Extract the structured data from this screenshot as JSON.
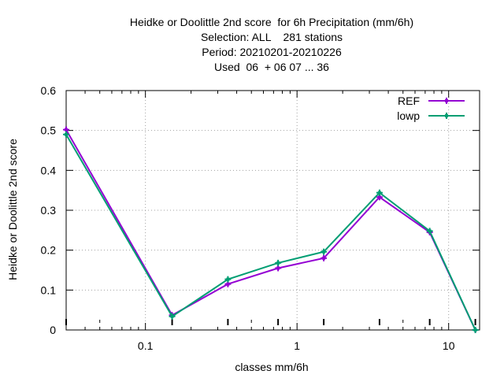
{
  "chart_data": {
    "type": "line",
    "title_lines": [
      "Heidke or Doolittle 2nd score  for 6h Precipitation (mm/6h)",
      "Selection: ALL    281 stations",
      "Period: 20210201-20210226",
      "Used  06  + 06 07 ... 36"
    ],
    "xlabel": "classes mm/6h",
    "ylabel": "Heidke or Doolittle 2nd score",
    "x_scale": "log",
    "xlim": [
      0.03,
      16
    ],
    "ylim": [
      0,
      0.6
    ],
    "x_ticks": [
      {
        "value": 0.1,
        "label": "0.1"
      },
      {
        "value": 1,
        "label": "1"
      },
      {
        "value": 10,
        "label": "10"
      }
    ],
    "y_ticks": [
      {
        "value": 0,
        "label": "0"
      },
      {
        "value": 0.1,
        "label": "0.1"
      },
      {
        "value": 0.2,
        "label": "0.2"
      },
      {
        "value": 0.3,
        "label": "0.3"
      },
      {
        "value": 0.4,
        "label": "0.4"
      },
      {
        "value": 0.5,
        "label": "0.5"
      },
      {
        "value": 0.6,
        "label": "0.6"
      }
    ],
    "grid": true,
    "legend_position": "top-right",
    "x": [
      0.03,
      0.15,
      0.35,
      0.75,
      1.5,
      3.5,
      7.5,
      15
    ],
    "series": [
      {
        "name": "REF",
        "color": "#9400d3",
        "marker": "plus",
        "values": [
          0.502,
          0.037,
          0.115,
          0.155,
          0.18,
          0.333,
          0.245,
          0.0
        ]
      },
      {
        "name": "lowp",
        "color": "#009e73",
        "marker": "plus",
        "values": [
          0.49,
          0.034,
          0.127,
          0.168,
          0.196,
          0.344,
          0.248,
          0.0
        ]
      }
    ]
  }
}
